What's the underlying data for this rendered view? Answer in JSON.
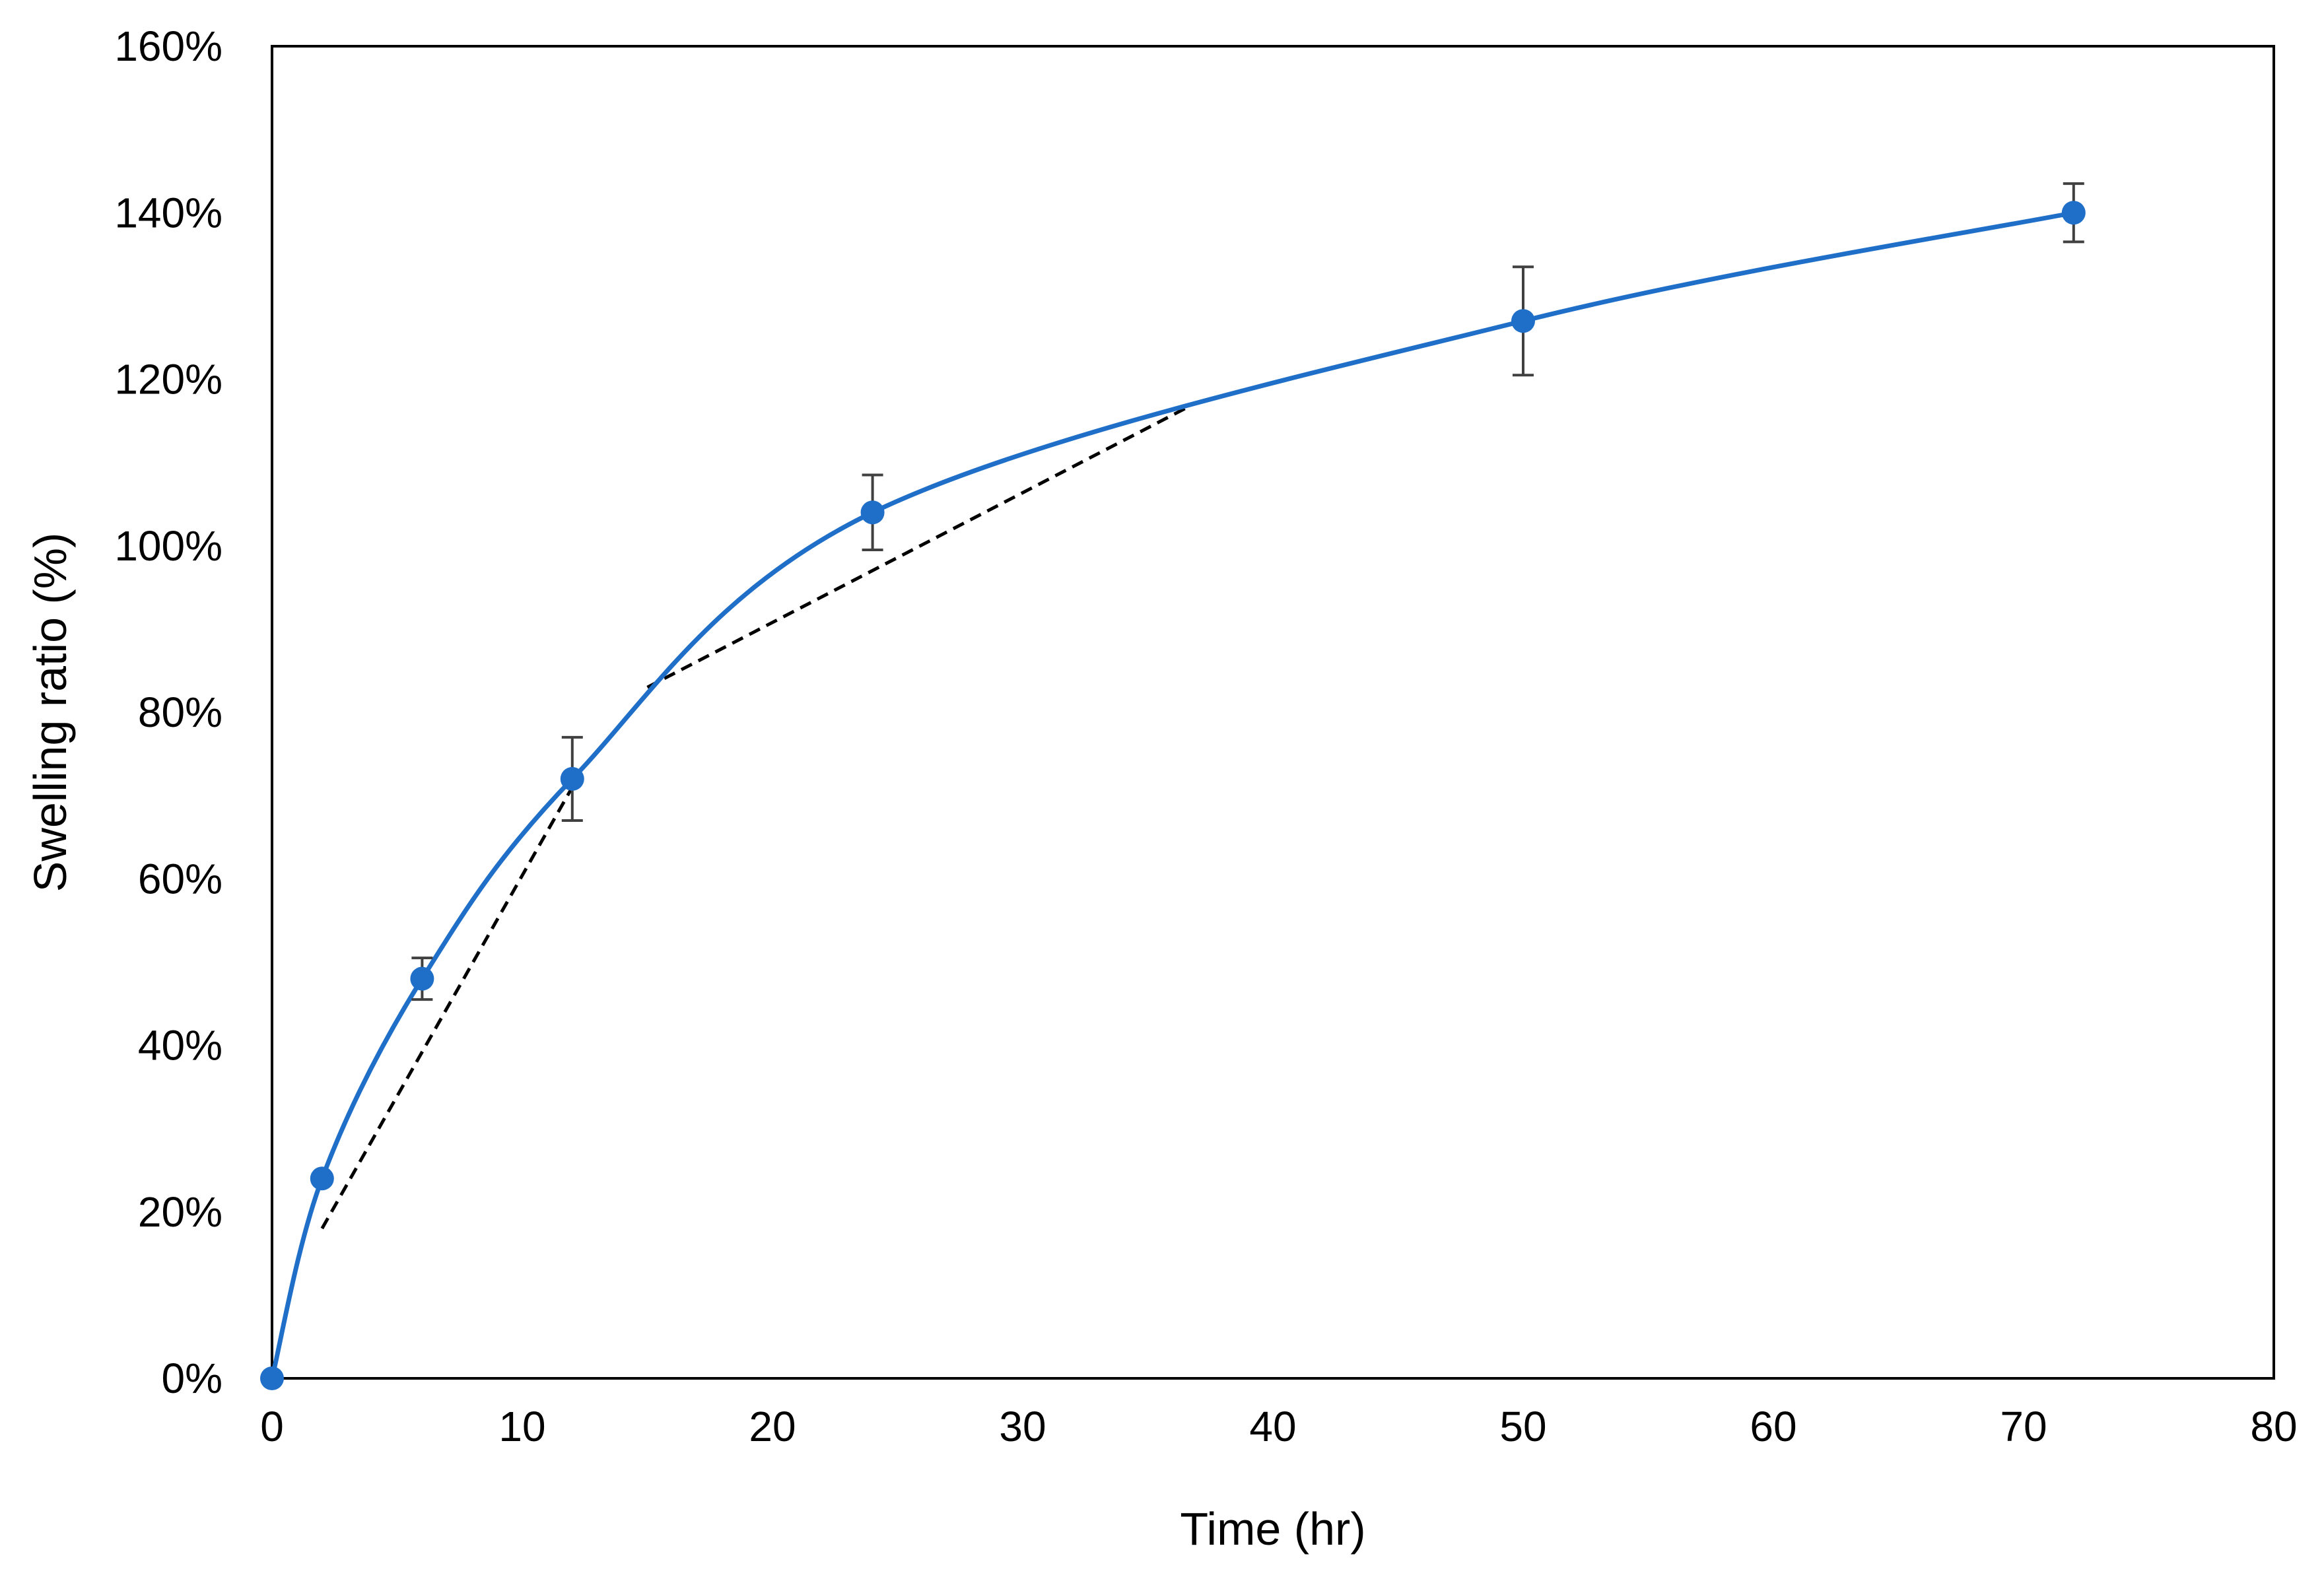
{
  "chart_data": {
    "type": "scatter",
    "title": "",
    "xlabel": "Time (hr)",
    "ylabel": "Swelling ratio (%)",
    "xlim": [
      0,
      80
    ],
    "ylim": [
      0,
      160
    ],
    "x_ticks": [
      0,
      10,
      20,
      30,
      40,
      50,
      60,
      70,
      80
    ],
    "x_tick_labels": [
      "0",
      "10",
      "20",
      "30",
      "40",
      "50",
      "60",
      "70",
      "80"
    ],
    "y_ticks": [
      0,
      20,
      40,
      60,
      80,
      100,
      120,
      140,
      160
    ],
    "y_tick_labels": [
      "0%",
      "20%",
      "40%",
      "60%",
      "80%",
      "100%",
      "120%",
      "140%",
      "160%"
    ],
    "grid": false,
    "series": [
      {
        "name": "Swelling ratio",
        "color": "#1f6fc9",
        "style": "smooth-line-with-markers",
        "x": [
          0,
          2,
          6,
          12,
          24,
          50,
          72
        ],
        "y": [
          0,
          24,
          48,
          72,
          104,
          127,
          140
        ],
        "error": [
          0,
          0,
          2.5,
          5,
          4.5,
          6.5,
          3.5
        ]
      }
    ],
    "annotations": [
      {
        "type": "dashed-line",
        "color": "#000000",
        "x": [
          2,
          12
        ],
        "y": [
          18,
          71
        ]
      },
      {
        "type": "dashed-line",
        "color": "#000000",
        "x": [
          15,
          36.5
        ],
        "y": [
          83,
          116.5
        ]
      }
    ]
  }
}
